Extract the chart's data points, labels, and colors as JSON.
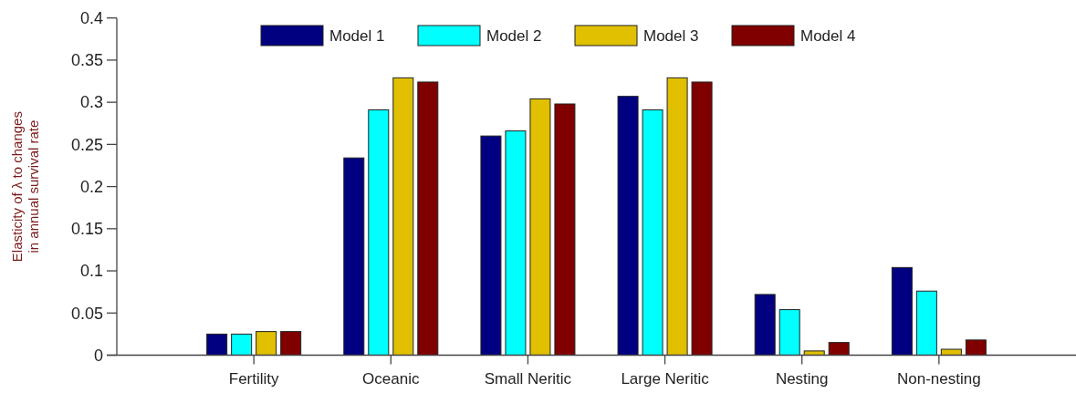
{
  "chart_data": {
    "type": "bar",
    "ylabel": "Elasticity of λ to changes\nin annual survival rate",
    "categories": [
      "Fertility",
      "Oceanic",
      "Small Neritic",
      "Large Neritic",
      "Nesting",
      "Non-nesting"
    ],
    "series": [
      {
        "name": "Model 1",
        "color": "#000080",
        "values": [
          0.025,
          0.234,
          0.26,
          0.307,
          0.072,
          0.104
        ]
      },
      {
        "name": "Model 2",
        "color": "#00ffff",
        "values": [
          0.025,
          0.291,
          0.266,
          0.291,
          0.054,
          0.076
        ]
      },
      {
        "name": "Model 3",
        "color": "#e0c000",
        "values": [
          0.028,
          0.329,
          0.304,
          0.329,
          0.005,
          0.007
        ]
      },
      {
        "name": "Model 4",
        "color": "#800000",
        "values": [
          0.028,
          0.324,
          0.298,
          0.324,
          0.015,
          0.018
        ]
      }
    ],
    "ylim": [
      0,
      0.4
    ],
    "yticks": [
      0,
      0.05,
      0.1,
      0.15,
      0.2,
      0.25,
      0.3,
      0.35,
      0.4
    ],
    "legend": "top",
    "grid": false
  }
}
